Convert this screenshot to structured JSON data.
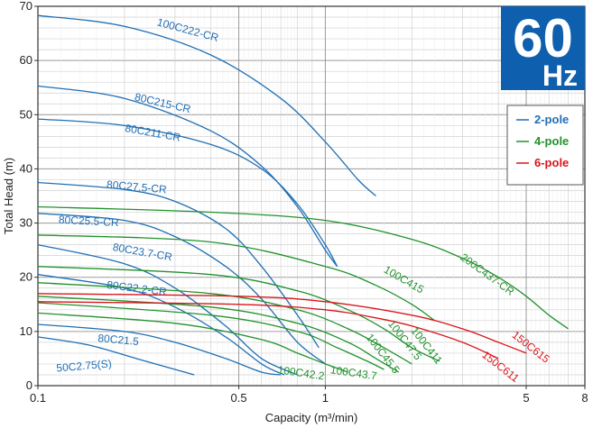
{
  "chart_data": {
    "type": "line",
    "xscale": "log",
    "xlim": [
      0.1,
      8
    ],
    "ylim": [
      0,
      70
    ],
    "grid": true,
    "xlabel": "Capacity (m³/min)",
    "ylabel": "Total Head (m)",
    "x_ticks": [
      0.1,
      0.5,
      1,
      5,
      8
    ],
    "x_tick_labels": [
      "0.1",
      "0.5",
      "1",
      "5",
      "8"
    ],
    "y_ticks": [
      0,
      10,
      20,
      30,
      40,
      50,
      60,
      70
    ],
    "y_tick_labels": [
      "0",
      "10",
      "20",
      "30",
      "40",
      "50",
      "60",
      "70"
    ],
    "frequency_badge": {
      "value": "60",
      "unit": "Hz",
      "color": "#0e5fae"
    },
    "legend": {
      "placement": "top-right",
      "items": [
        {
          "label": "2-pole",
          "color": "#1f6fb4"
        },
        {
          "label": "4-pole",
          "color": "#21922d"
        },
        {
          "label": "6-pole",
          "color": "#d9151b"
        }
      ]
    },
    "colors": {
      "2-pole": "#1f6fb4",
      "4-pole": "#21922d",
      "6-pole": "#d9151b"
    },
    "series": [
      {
        "name": "100C222-CR",
        "pole": "2-pole",
        "label_at": [
          0.33,
          65.0
        ],
        "label_rot": 15,
        "x": [
          0.1,
          0.2,
          0.4,
          0.7,
          1.0,
          1.3,
          1.5
        ],
        "y": [
          68.3,
          66.3,
          61.0,
          53.0,
          45.0,
          38.0,
          35.0
        ]
      },
      {
        "name": "80C215-CR",
        "pole": "2-pole",
        "label_at": [
          0.27,
          51.5
        ],
        "label_rot": 13,
        "x": [
          0.1,
          0.2,
          0.4,
          0.6,
          0.8,
          1.0,
          1.1
        ],
        "y": [
          55.3,
          53.0,
          47.0,
          40.5,
          33.0,
          25.0,
          22.0
        ]
      },
      {
        "name": "80C211-CR",
        "pole": "2-pole",
        "label_at": [
          0.25,
          46.0
        ],
        "label_rot": 10,
        "x": [
          0.1,
          0.2,
          0.4,
          0.6,
          0.8,
          1.0,
          1.1
        ],
        "y": [
          49.2,
          48.0,
          44.5,
          40.0,
          33.5,
          26.0,
          22.0
        ]
      },
      {
        "name": "80C27.5-CR",
        "pole": "2-pole",
        "label_at": [
          0.22,
          36.0
        ],
        "label_rot": 5,
        "x": [
          0.1,
          0.2,
          0.3,
          0.45,
          0.6,
          0.8,
          0.95
        ],
        "y": [
          37.5,
          36.2,
          34.0,
          29.0,
          22.0,
          13.0,
          7.0
        ]
      },
      {
        "name": "80C25.5-CR",
        "pole": "2-pole",
        "label_at": [
          0.15,
          29.7
        ],
        "label_rot": 3,
        "x": [
          0.1,
          0.2,
          0.3,
          0.45,
          0.6,
          0.8,
          1.0
        ],
        "y": [
          31.8,
          30.5,
          27.5,
          22.0,
          16.0,
          8.0,
          4.0
        ]
      },
      {
        "name": "80C23.7-CR",
        "pole": "2-pole",
        "label_at": [
          0.23,
          24.0
        ],
        "label_rot": 10,
        "x": [
          0.1,
          0.2,
          0.3,
          0.45,
          0.6,
          0.8
        ],
        "y": [
          26.0,
          22.5,
          18.0,
          11.0,
          5.0,
          2.0
        ]
      },
      {
        "name": "80C22.2-CR",
        "pole": "2-pole",
        "label_at": [
          0.22,
          17.3
        ],
        "label_rot": 7,
        "x": [
          0.1,
          0.2,
          0.3,
          0.45,
          0.6,
          0.72
        ],
        "y": [
          20.5,
          18.0,
          14.5,
          9.0,
          4.0,
          2.0
        ]
      },
      {
        "name": "80C21.5",
        "pole": "2-pole",
        "label_at": [
          0.19,
          7.8
        ],
        "label_rot": 5,
        "x": [
          0.1,
          0.2,
          0.3,
          0.45,
          0.6,
          0.7
        ],
        "y": [
          11.3,
          10.0,
          8.0,
          5.0,
          2.5,
          2.0
        ]
      },
      {
        "name": "50C2.75(S)",
        "pole": "2-pole",
        "label_at": [
          0.145,
          3.0
        ],
        "label_rot": -5,
        "x": [
          0.1,
          0.15,
          0.22,
          0.3,
          0.35
        ],
        "y": [
          9.0,
          7.5,
          5.0,
          3.0,
          2.0
        ]
      },
      {
        "name": "200C437-CR",
        "pole": "4-pole",
        "label_at": [
          3.6,
          20.0
        ],
        "label_rot": 36,
        "x": [
          0.1,
          0.4,
          1.0,
          2.0,
          3.0,
          4.0,
          5.0,
          6.0,
          7.0
        ],
        "y": [
          33.0,
          32.0,
          30.5,
          27.0,
          23.5,
          20.0,
          16.5,
          13.0,
          10.5
        ]
      },
      {
        "name": "100C415",
        "pole": "4-pole",
        "label_at": [
          1.85,
          19.0
        ],
        "label_rot": 30,
        "x": [
          0.1,
          0.4,
          1.0,
          1.5,
          2.0,
          2.4
        ],
        "y": [
          27.8,
          26.5,
          22.0,
          18.5,
          15.0,
          12.0
        ]
      },
      {
        "name": "100C411",
        "pole": "4-pole",
        "label_at": [
          2.2,
          7.0
        ],
        "label_rot": 52,
        "x": [
          0.1,
          0.4,
          0.8,
          1.2,
          1.6,
          2.0,
          2.5
        ],
        "y": [
          22.0,
          20.5,
          17.5,
          14.0,
          10.5,
          7.0,
          4.5
        ]
      },
      {
        "name": "100C47.5",
        "pole": "4-pole",
        "label_at": [
          1.85,
          8.0
        ],
        "label_rot": 52,
        "x": [
          0.1,
          0.4,
          0.8,
          1.2,
          1.6,
          2.0
        ],
        "y": [
          19.0,
          17.0,
          14.0,
          10.5,
          7.0,
          4.0
        ]
      },
      {
        "name": "100C45.5",
        "pole": "4-pole",
        "label_at": [
          1.55,
          5.5
        ],
        "label_rot": 52,
        "x": [
          0.1,
          0.4,
          0.8,
          1.2,
          1.5,
          1.8
        ],
        "y": [
          16.5,
          14.5,
          11.5,
          8.0,
          5.0,
          2.5
        ]
      },
      {
        "name": "100C43.7",
        "pole": "4-pole",
        "label_at": [
          1.25,
          1.7
        ],
        "label_rot": 8,
        "x": [
          0.1,
          0.4,
          0.8,
          1.1,
          1.4,
          1.6
        ],
        "y": [
          15.3,
          13.0,
          10.0,
          7.0,
          4.5,
          3.0
        ]
      },
      {
        "name": "100C42.2",
        "pole": "4-pole",
        "label_at": [
          0.82,
          1.7
        ],
        "label_rot": 8,
        "x": [
          0.1,
          0.3,
          0.6,
          0.8,
          1.0,
          1.2
        ],
        "y": [
          13.4,
          11.5,
          8.5,
          6.0,
          4.0,
          2.5
        ]
      },
      {
        "name": "150C615",
        "pole": "6-pole",
        "label_at": [
          5.1,
          6.6
        ],
        "label_rot": 38,
        "x": [
          0.1,
          0.5,
          1.0,
          2.0,
          3.0,
          4.0,
          5.0
        ],
        "y": [
          17.0,
          16.5,
          15.5,
          13.0,
          10.5,
          8.0,
          6.0
        ]
      },
      {
        "name": "150C611",
        "pole": "6-pole",
        "label_at": [
          4.0,
          3.0
        ],
        "label_rot": 38,
        "x": [
          0.1,
          0.5,
          1.0,
          1.5,
          2.0,
          3.0,
          4.0
        ],
        "y": [
          15.5,
          15.0,
          14.0,
          12.5,
          11.0,
          8.0,
          5.0
        ]
      }
    ]
  }
}
